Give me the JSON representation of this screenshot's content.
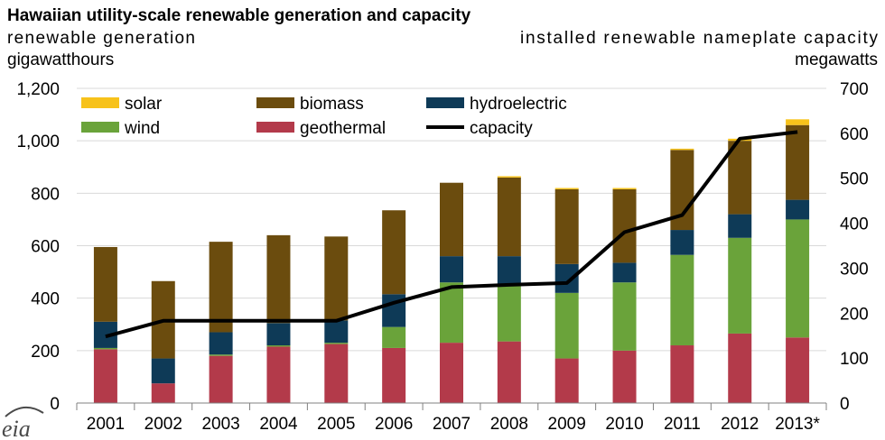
{
  "chart_data": {
    "type": "bar",
    "stacked": true,
    "title": "Hawaiian utility-scale renewable generation and capacity",
    "ylabel_left": [
      "renewable generation",
      "gigawatthours"
    ],
    "ylabel_right": [
      "installed renewable nameplate capacity",
      "megawatts"
    ],
    "categories": [
      "2001",
      "2002",
      "2003",
      "2004",
      "2005",
      "2006",
      "2007",
      "2008",
      "2009",
      "2010",
      "2011",
      "2012",
      "2013*"
    ],
    "ylim_left": [
      0,
      1200
    ],
    "yticks_left": [
      "0",
      "200",
      "400",
      "600",
      "800",
      "1,000",
      "1,200"
    ],
    "ylim_right": [
      0,
      700
    ],
    "yticks_right": [
      "0",
      "100",
      "200",
      "300",
      "400",
      "500",
      "600",
      "700"
    ],
    "series": [
      {
        "name": "geothermal",
        "color": "#b33a4a",
        "values": [
          205,
          75,
          180,
          215,
          225,
          210,
          230,
          235,
          170,
          200,
          220,
          265,
          250
        ]
      },
      {
        "name": "wind",
        "color": "#6aa33a",
        "values": [
          5,
          0,
          5,
          5,
          5,
          80,
          230,
          220,
          250,
          260,
          345,
          365,
          450
        ]
      },
      {
        "name": "hydroelectric",
        "color": "#0e3a57",
        "values": [
          100,
          95,
          85,
          85,
          85,
          125,
          100,
          105,
          110,
          75,
          95,
          90,
          75
        ]
      },
      {
        "name": "biomass",
        "color": "#6b4c0e",
        "values": [
          285,
          295,
          345,
          335,
          320,
          320,
          280,
          300,
          285,
          280,
          305,
          280,
          285
        ]
      },
      {
        "name": "solar",
        "color": "#f7c21b",
        "values": [
          0,
          0,
          0,
          0,
          0,
          0,
          0,
          5,
          5,
          5,
          5,
          8,
          22
        ]
      }
    ],
    "line": {
      "name": "capacity",
      "color": "#000000",
      "axis": "right",
      "values": [
        148,
        183,
        183,
        183,
        183,
        223,
        258,
        263,
        267,
        380,
        418,
        588,
        603
      ]
    },
    "legend_order": [
      "solar",
      "biomass",
      "hydroelectric",
      "wind",
      "geothermal",
      "capacity"
    ],
    "grid": "horizontal",
    "legend_position": "top-left"
  },
  "logo": {
    "text": "eia"
  }
}
